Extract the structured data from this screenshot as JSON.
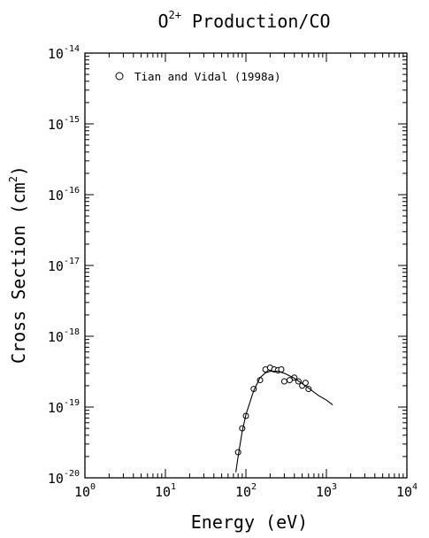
{
  "chart_data": {
    "type": "scatter",
    "title_base": "O",
    "title_sup": "2+",
    "title_rest": " Production/CO",
    "xlabel": "Energy (eV)",
    "ylabel_base": "Cross Section (cm",
    "ylabel_sup": "2",
    "ylabel_close": ")",
    "xscale": "log",
    "yscale": "log",
    "xlim": [
      1,
      10000
    ],
    "ylim": [
      1e-20,
      1e-14
    ],
    "x_ticks": [
      {
        "base": "10",
        "exp": "0",
        "value": 1
      },
      {
        "base": "10",
        "exp": "1",
        "value": 10
      },
      {
        "base": "10",
        "exp": "2",
        "value": 100
      },
      {
        "base": "10",
        "exp": "3",
        "value": 1000
      },
      {
        "base": "10",
        "exp": "4",
        "value": 10000
      }
    ],
    "y_ticks": [
      {
        "base": "10",
        "exp": "-20",
        "value": 1e-20
      },
      {
        "base": "10",
        "exp": "-19",
        "value": 1e-19
      },
      {
        "base": "10",
        "exp": "-18",
        "value": 1e-18
      },
      {
        "base": "10",
        "exp": "-17",
        "value": 1e-17
      },
      {
        "base": "10",
        "exp": "-16",
        "value": 1e-16
      },
      {
        "base": "10",
        "exp": "-15",
        "value": 1e-15
      },
      {
        "base": "10",
        "exp": "-14",
        "value": 1e-14
      }
    ],
    "grid": false,
    "legend_position": "top-left",
    "series": [
      {
        "name": "Tian and Vidal (1998a)",
        "marker": "open-circle",
        "points": [
          [
            80,
            2.3e-20
          ],
          [
            90,
            5e-20
          ],
          [
            100,
            7.5e-20
          ],
          [
            125,
            1.8e-19
          ],
          [
            150,
            2.4e-19
          ],
          [
            175,
            3.4e-19
          ],
          [
            200,
            3.6e-19
          ],
          [
            225,
            3.4e-19
          ],
          [
            250,
            3.3e-19
          ],
          [
            275,
            3.4e-19
          ],
          [
            300,
            2.3e-19
          ],
          [
            350,
            2.4e-19
          ],
          [
            400,
            2.6e-19
          ],
          [
            450,
            2.3e-19
          ],
          [
            500,
            2e-19
          ],
          [
            550,
            2.2e-19
          ],
          [
            600,
            1.8e-19
          ]
        ]
      },
      {
        "name": "",
        "style": "line",
        "points": [
          [
            75,
            1.2e-20
          ],
          [
            80,
            2e-20
          ],
          [
            90,
            4.5e-20
          ],
          [
            100,
            7.8e-20
          ],
          [
            125,
            1.7e-19
          ],
          [
            150,
            2.6e-19
          ],
          [
            175,
            3.05e-19
          ],
          [
            200,
            3.2e-19
          ],
          [
            250,
            3.2e-19
          ],
          [
            300,
            3e-19
          ],
          [
            400,
            2.55e-19
          ],
          [
            500,
            2.15e-19
          ],
          [
            600,
            1.85e-19
          ],
          [
            800,
            1.45e-19
          ],
          [
            1000,
            1.25e-19
          ],
          [
            1200,
            1.07e-19
          ]
        ]
      }
    ]
  }
}
